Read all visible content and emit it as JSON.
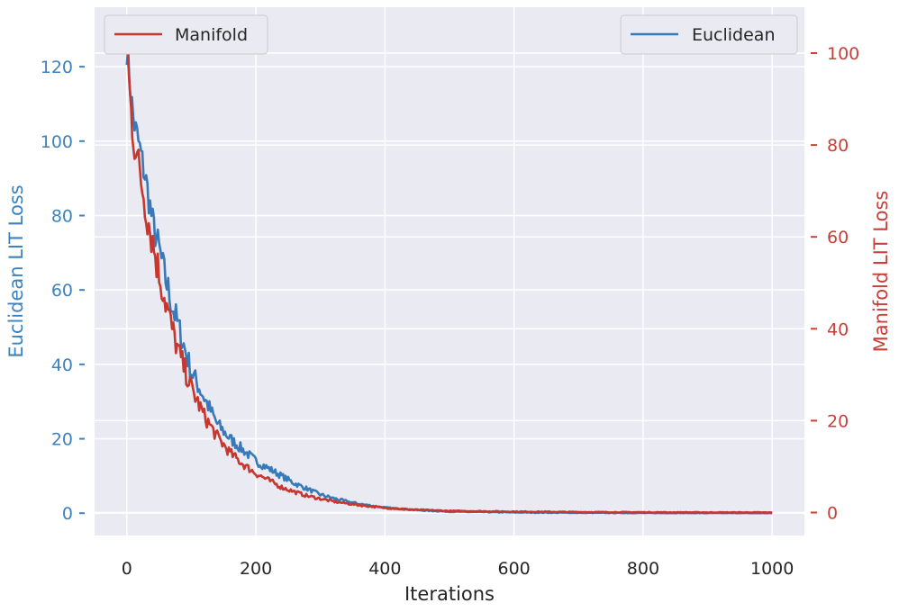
{
  "chart_data": {
    "type": "line",
    "xlabel": "Iterations",
    "ylabel_left": "Euclidean LIT Loss",
    "ylabel_right": "Manifold LIT Loss",
    "xlim": [
      -50,
      1050
    ],
    "ylim_left": [
      -6,
      136
    ],
    "ylim_right": [
      -5,
      110
    ],
    "x_ticks": [
      0,
      200,
      400,
      600,
      800,
      1000
    ],
    "y_ticks_left": [
      0,
      20,
      40,
      60,
      80,
      100,
      120
    ],
    "y_ticks_right": [
      0,
      20,
      40,
      60,
      80,
      100
    ],
    "grid": true,
    "colors": {
      "left_axis": "#3e82bd",
      "right_axis": "#c8403a",
      "background": "#eaeaf2",
      "grid": "#ffffff"
    },
    "series": [
      {
        "name": "Euclidean",
        "axis": "left",
        "color": "#3a79b8",
        "x": [
          0,
          10,
          20,
          30,
          40,
          50,
          60,
          70,
          80,
          90,
          100,
          120,
          140,
          160,
          180,
          200,
          220,
          240,
          260,
          280,
          300,
          320,
          340,
          360,
          380,
          400,
          450,
          500,
          600,
          700,
          800,
          900,
          1000
        ],
        "y": [
          125,
          106,
          98,
          89,
          78,
          71,
          63,
          56,
          50,
          44,
          38,
          31,
          24,
          20,
          17,
          14,
          12,
          10,
          8,
          6.5,
          5,
          4,
          3.2,
          2.5,
          2,
          1.5,
          0.8,
          0.4,
          0.2,
          0.1,
          0.05,
          0.02,
          0
        ]
      },
      {
        "name": "Manifold",
        "axis": "right",
        "color": "#c6372f",
        "x": [
          0,
          5,
          10,
          20,
          30,
          40,
          50,
          60,
          70,
          80,
          90,
          100,
          120,
          140,
          160,
          180,
          200,
          220,
          240,
          260,
          280,
          300,
          320,
          340,
          360,
          380,
          400,
          450,
          500,
          600,
          700,
          800,
          900,
          1000
        ],
        "y": [
          103,
          90,
          82,
          74,
          66,
          59,
          52,
          46,
          40,
          35,
          31,
          27,
          21,
          16.5,
          13,
          10.5,
          8.5,
          7,
          5.5,
          4.5,
          3.6,
          3,
          2.4,
          2,
          1.6,
          1.3,
          1,
          0.6,
          0.35,
          0.2,
          0.1,
          0.05,
          0.02,
          0
        ]
      }
    ],
    "legend": [
      {
        "label": "Manifold",
        "position": "top-left"
      },
      {
        "label": "Euclidean",
        "position": "top-right"
      }
    ]
  }
}
